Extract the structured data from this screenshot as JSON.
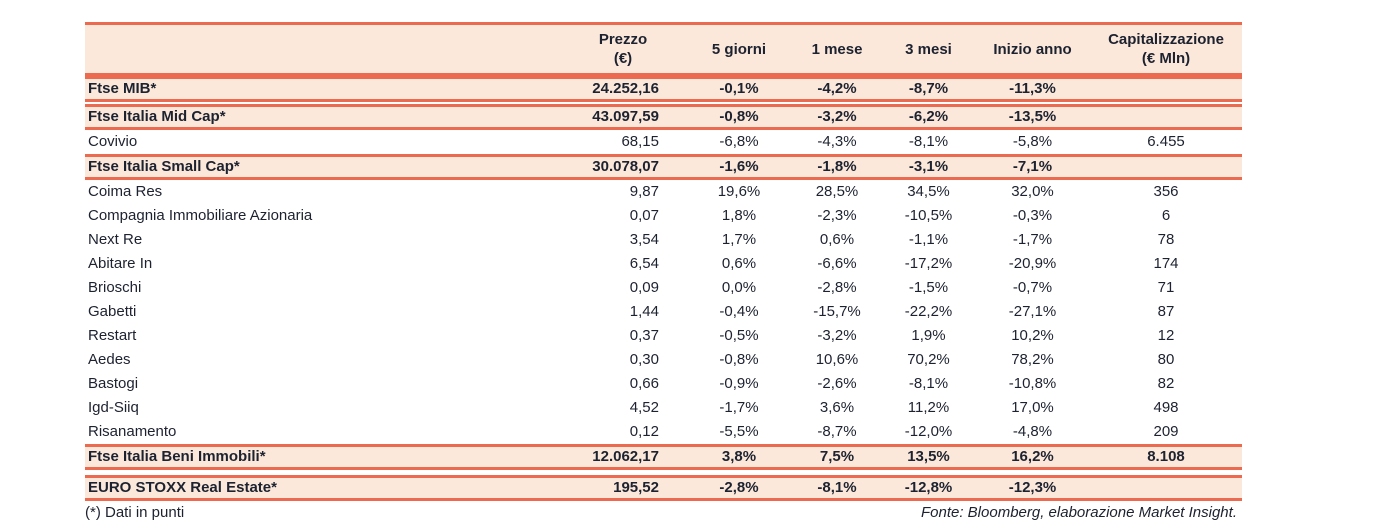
{
  "colors": {
    "accent_line": "#ec6a50",
    "band_fill": "#fbe8da",
    "text": "#1d2230",
    "page_bg": "#ffffff"
  },
  "table": {
    "header": {
      "name_col": "",
      "prezzo_l1": "Prezzo",
      "prezzo_l2": "(€)",
      "d5": "5 giorni",
      "m1": "1 mese",
      "m3": "3 mesi",
      "ytd": "Inizio anno",
      "cap_l1": "Capitalizzazione",
      "cap_l2": "(€ Mln)"
    },
    "rows": [
      {
        "label": "Ftse MIB*",
        "style": "index",
        "prezzo": "24.252,16",
        "d5": "-0,1%",
        "m1": "-4,2%",
        "m3": "-8,7%",
        "ytd": "-11,3%",
        "cap": ""
      },
      {
        "label": "Ftse Italia Mid Cap*",
        "style": "index",
        "prezzo": "43.097,59",
        "d5": "-0,8%",
        "m1": "-3,2%",
        "m3": "-6,2%",
        "ytd": "-13,5%",
        "cap": ""
      },
      {
        "label": "Covivio",
        "style": "stock",
        "prezzo": "68,15",
        "d5": "-6,8%",
        "m1": "-4,3%",
        "m3": "-8,1%",
        "ytd": "-5,8%",
        "cap": "6.455"
      },
      {
        "label": "Ftse Italia Small Cap*",
        "style": "index",
        "prezzo": "30.078,07",
        "d5": "-1,6%",
        "m1": "-1,8%",
        "m3": "-3,1%",
        "ytd": "-7,1%",
        "cap": ""
      },
      {
        "label": "Coima Res",
        "style": "stock",
        "prezzo": "9,87",
        "d5": "19,6%",
        "m1": "28,5%",
        "m3": "34,5%",
        "ytd": "32,0%",
        "cap": "356"
      },
      {
        "label": "Compagnia Immobiliare Azionaria",
        "style": "stock",
        "prezzo": "0,07",
        "d5": "1,8%",
        "m1": "-2,3%",
        "m3": "-10,5%",
        "ytd": "-0,3%",
        "cap": "6"
      },
      {
        "label": "Next Re",
        "style": "stock",
        "prezzo": "3,54",
        "d5": "1,7%",
        "m1": "0,6%",
        "m3": "-1,1%",
        "ytd": "-1,7%",
        "cap": "78"
      },
      {
        "label": "Abitare In",
        "style": "stock",
        "prezzo": "6,54",
        "d5": "0,6%",
        "m1": "-6,6%",
        "m3": "-17,2%",
        "ytd": "-20,9%",
        "cap": "174"
      },
      {
        "label": "Brioschi",
        "style": "stock",
        "prezzo": "0,09",
        "d5": "0,0%",
        "m1": "-2,8%",
        "m3": "-1,5%",
        "ytd": "-0,7%",
        "cap": "71"
      },
      {
        "label": "Gabetti",
        "style": "stock",
        "prezzo": "1,44",
        "d5": "-0,4%",
        "m1": "-15,7%",
        "m3": "-22,2%",
        "ytd": "-27,1%",
        "cap": "87"
      },
      {
        "label": "Restart",
        "style": "stock",
        "prezzo": "0,37",
        "d5": "-0,5%",
        "m1": "-3,2%",
        "m3": "1,9%",
        "ytd": "10,2%",
        "cap": "12"
      },
      {
        "label": "Aedes",
        "style": "stock",
        "prezzo": "0,30",
        "d5": "-0,8%",
        "m1": "10,6%",
        "m3": "70,2%",
        "ytd": "78,2%",
        "cap": "80"
      },
      {
        "label": "Bastogi",
        "style": "stock",
        "prezzo": "0,66",
        "d5": "-0,9%",
        "m1": "-2,6%",
        "m3": "-8,1%",
        "ytd": "-10,8%",
        "cap": "82"
      },
      {
        "label": "Igd-Siiq",
        "style": "stock",
        "prezzo": "4,52",
        "d5": "-1,7%",
        "m1": "3,6%",
        "m3": "11,2%",
        "ytd": "17,0%",
        "cap": "498"
      },
      {
        "label": "Risanamento",
        "style": "stock",
        "prezzo": "0,12",
        "d5": "-5,5%",
        "m1": "-8,7%",
        "m3": "-12,0%",
        "ytd": "-4,8%",
        "cap": "209"
      },
      {
        "label": "Ftse Italia Beni Immobili*",
        "style": "index",
        "prezzo": "12.062,17",
        "d5": "3,8%",
        "m1": "7,5%",
        "m3": "13,5%",
        "ytd": "16,2%",
        "cap": "8.108"
      },
      {
        "label": "EURO STOXX Real Estate*",
        "style": "index",
        "gap_before": true,
        "prezzo": "195,52",
        "d5": "-2,8%",
        "m1": "-8,1%",
        "m3": "-12,8%",
        "ytd": "-12,3%",
        "cap": ""
      }
    ]
  },
  "footer": {
    "note": "(*) Dati in punti",
    "source": "Fonte: Bloomberg, elaborazione Market Insight."
  }
}
